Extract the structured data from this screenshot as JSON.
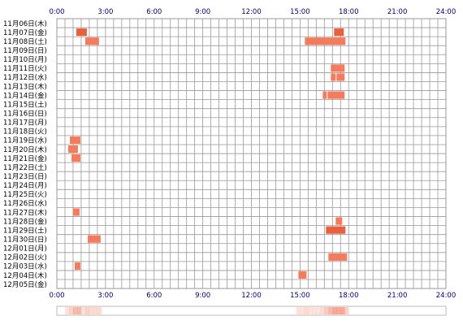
{
  "chart_data": {
    "type": "heatmap",
    "title": "",
    "xlabel": "",
    "ylabel": "",
    "xlim": [
      0,
      24
    ],
    "x_ticks": [
      "0:00",
      "3:00",
      "6:00",
      "9:00",
      "12:00",
      "15:00",
      "18:00",
      "21:00",
      "24:00"
    ],
    "x_tick_values": [
      0,
      3,
      6,
      9,
      12,
      15,
      18,
      21,
      24
    ],
    "rows": [
      "11月06日(木)",
      "11月07日(金)",
      "11月08日(土)",
      "11月09日(日)",
      "11月10日(月)",
      "11月11日(火)",
      "11月12日(水)",
      "11月13日(木)",
      "11月14日(金)",
      "11月15日(土)",
      "11月16日(日)",
      "11月17日(月)",
      "11月18日(火)",
      "11月19日(水)",
      "11月20日(木)",
      "11月21日(金)",
      "11月22日(土)",
      "11月23日(日)",
      "11月24日(月)",
      "11月25日(火)",
      "11月26日(水)",
      "11月27日(木)",
      "11月28日(金)",
      "11月29日(土)",
      "11月30日(日)",
      "12月01日(月)",
      "12月02日(火)",
      "12月03日(水)",
      "12月04日(木)",
      "12月05日(金)"
    ],
    "grid": true,
    "bar_colors": {
      "normal": "#f47c5c",
      "dark": "#e8603c"
    },
    "summary_bar_color": "#f47c5c",
    "events": [
      {
        "row": 1,
        "start": 1.2,
        "end": 1.85,
        "shade": "dark"
      },
      {
        "row": 1,
        "start": 17.1,
        "end": 17.7,
        "shade": "dark"
      },
      {
        "row": 2,
        "start": 1.75,
        "end": 2.6,
        "shade": "normal"
      },
      {
        "row": 2,
        "start": 15.3,
        "end": 17.8,
        "shade": "normal"
      },
      {
        "row": 5,
        "start": 16.9,
        "end": 17.75,
        "shade": "normal"
      },
      {
        "row": 6,
        "start": 16.9,
        "end": 17.2,
        "shade": "normal"
      },
      {
        "row": 6,
        "start": 17.25,
        "end": 17.75,
        "shade": "normal"
      },
      {
        "row": 8,
        "start": 16.4,
        "end": 16.65,
        "shade": "normal"
      },
      {
        "row": 8,
        "start": 16.7,
        "end": 17.75,
        "shade": "normal"
      },
      {
        "row": 13,
        "start": 0.8,
        "end": 1.45,
        "shade": "normal"
      },
      {
        "row": 14,
        "start": 0.7,
        "end": 1.3,
        "shade": "normal"
      },
      {
        "row": 15,
        "start": 0.9,
        "end": 1.45,
        "shade": "normal"
      },
      {
        "row": 21,
        "start": 1.0,
        "end": 1.4,
        "shade": "normal"
      },
      {
        "row": 22,
        "start": 17.2,
        "end": 17.6,
        "shade": "normal"
      },
      {
        "row": 23,
        "start": 16.6,
        "end": 17.8,
        "shade": "dark"
      },
      {
        "row": 24,
        "start": 1.9,
        "end": 2.7,
        "shade": "normal"
      },
      {
        "row": 26,
        "start": 16.75,
        "end": 17.9,
        "shade": "normal"
      },
      {
        "row": 27,
        "start": 1.1,
        "end": 1.45,
        "shade": "normal"
      },
      {
        "row": 28,
        "start": 14.9,
        "end": 15.4,
        "shade": "normal"
      }
    ]
  }
}
